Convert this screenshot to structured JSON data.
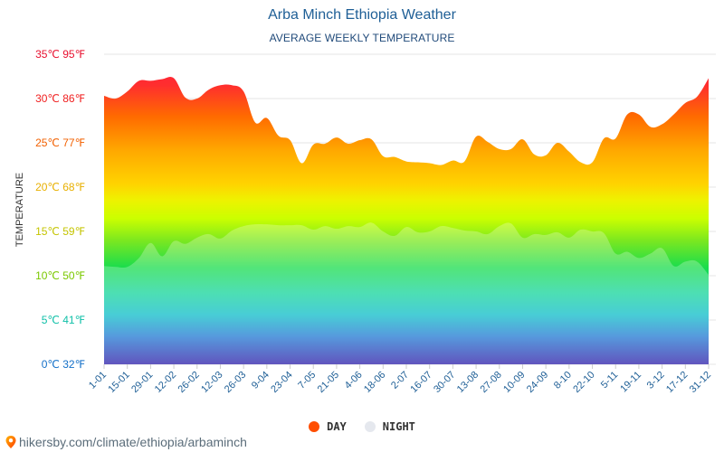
{
  "title": "Arba Minch Ethiopia Weather",
  "subtitle": "AVERAGE WEEKLY TEMPERATURE",
  "legend": {
    "day_label": "DAY",
    "night_label": "NIGHT"
  },
  "footer": {
    "url": "hikersby.com/climate/ethiopia/arbaminch"
  },
  "colors": {
    "day_dot": "#ff4e00",
    "night_dot": "#e5e8ee",
    "title": "#1f5f96",
    "grid": "#e6e6e6"
  },
  "chart_data": {
    "type": "area",
    "ylabel": "TEMPERATURE",
    "ylim": [
      0,
      35
    ],
    "y_ticks": [
      {
        "value": 35,
        "label": "35℃ 95℉"
      },
      {
        "value": 30,
        "label": "30℃ 86℉"
      },
      {
        "value": 25,
        "label": "25℃ 77℉"
      },
      {
        "value": 20,
        "label": "20℃ 68℉"
      },
      {
        "value": 15,
        "label": "15℃ 59℉"
      },
      {
        "value": 10,
        "label": "10℃ 50℉"
      },
      {
        "value": 5,
        "label": "5℃ 41℉"
      },
      {
        "value": 0,
        "label": "0℃ 32℉"
      }
    ],
    "x_tick_labels": [
      "1-01",
      "15-01",
      "29-01",
      "12-02",
      "26-02",
      "12-03",
      "26-03",
      "9-04",
      "23-04",
      "7-05",
      "21-05",
      "4-06",
      "18-06",
      "2-07",
      "16-07",
      "30-07",
      "13-08",
      "27-08",
      "10-09",
      "24-09",
      "8-10",
      "22-10",
      "5-11",
      "19-11",
      "3-12",
      "17-12",
      "31-12"
    ],
    "grid": true,
    "legend_position": "bottom",
    "series": [
      {
        "name": "DAY",
        "values": [
          30.3,
          30.0,
          30.8,
          32.0,
          32.0,
          32.2,
          32.3,
          30.1,
          30.0,
          31.0,
          31.5,
          31.5,
          30.8,
          27.3,
          27.8,
          25.8,
          25.3,
          22.7,
          24.8,
          24.9,
          25.6,
          24.9,
          25.3,
          25.4,
          23.5,
          23.4,
          22.9,
          22.8,
          22.7,
          22.5,
          23.0,
          22.9,
          25.7,
          25.1,
          24.3,
          24.3,
          25.4,
          23.7,
          23.6,
          25.0,
          24.0,
          22.8,
          22.8,
          25.5,
          25.5,
          28.2,
          28.2,
          26.8,
          27.1,
          28.2,
          29.5,
          30.2,
          32.3
        ]
      },
      {
        "name": "NIGHT",
        "values": [
          11.1,
          11.0,
          11.0,
          12.0,
          13.7,
          12.2,
          13.9,
          13.6,
          14.3,
          14.7,
          14.2,
          15.1,
          15.6,
          15.8,
          15.8,
          15.7,
          15.7,
          15.7,
          15.2,
          15.6,
          15.3,
          15.6,
          15.5,
          16.0,
          15.0,
          14.5,
          15.5,
          14.9,
          15.0,
          15.6,
          15.4,
          15.1,
          15.0,
          14.7,
          15.6,
          15.9,
          14.3,
          14.7,
          14.6,
          14.9,
          14.3,
          15.2,
          15.0,
          14.8,
          12.5,
          12.7,
          12.0,
          12.5,
          13.1,
          11.1,
          11.6,
          11.6,
          10.1
        ]
      }
    ]
  }
}
